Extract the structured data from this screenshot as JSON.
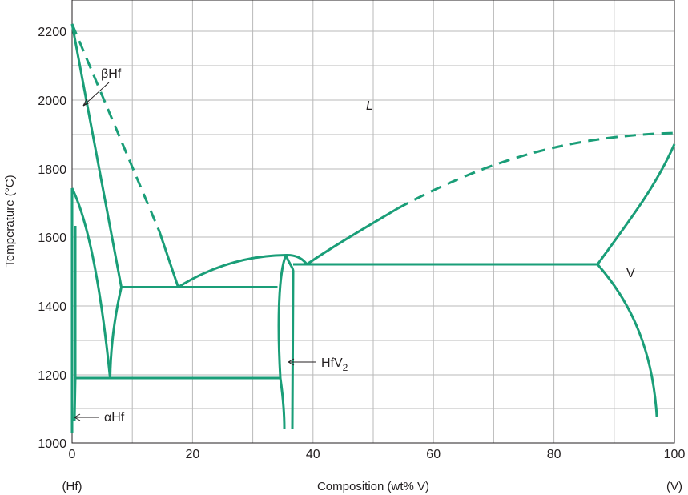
{
  "axes": {
    "ylabel": "Temperature (°C)",
    "xlabel": "Composition (wt% V)",
    "x_left_end": "(Hf)",
    "x_right_end": "(V)",
    "x_ticks": [
      "0",
      "20",
      "40",
      "60",
      "80",
      "100"
    ],
    "y_ticks": [
      "1000",
      "1200",
      "1400",
      "1600",
      "1800",
      "2000",
      "2200"
    ]
  },
  "phases": {
    "liquid": "L",
    "beta_hf": "βHf",
    "alpha_hf": "αHf",
    "hfv2_base": "HfV",
    "hfv2_sub": "2",
    "vanadium": "V"
  },
  "colors": {
    "boundary": "#1a9e78",
    "grid": "#b9b9b9",
    "frame": "#231f20"
  }
}
